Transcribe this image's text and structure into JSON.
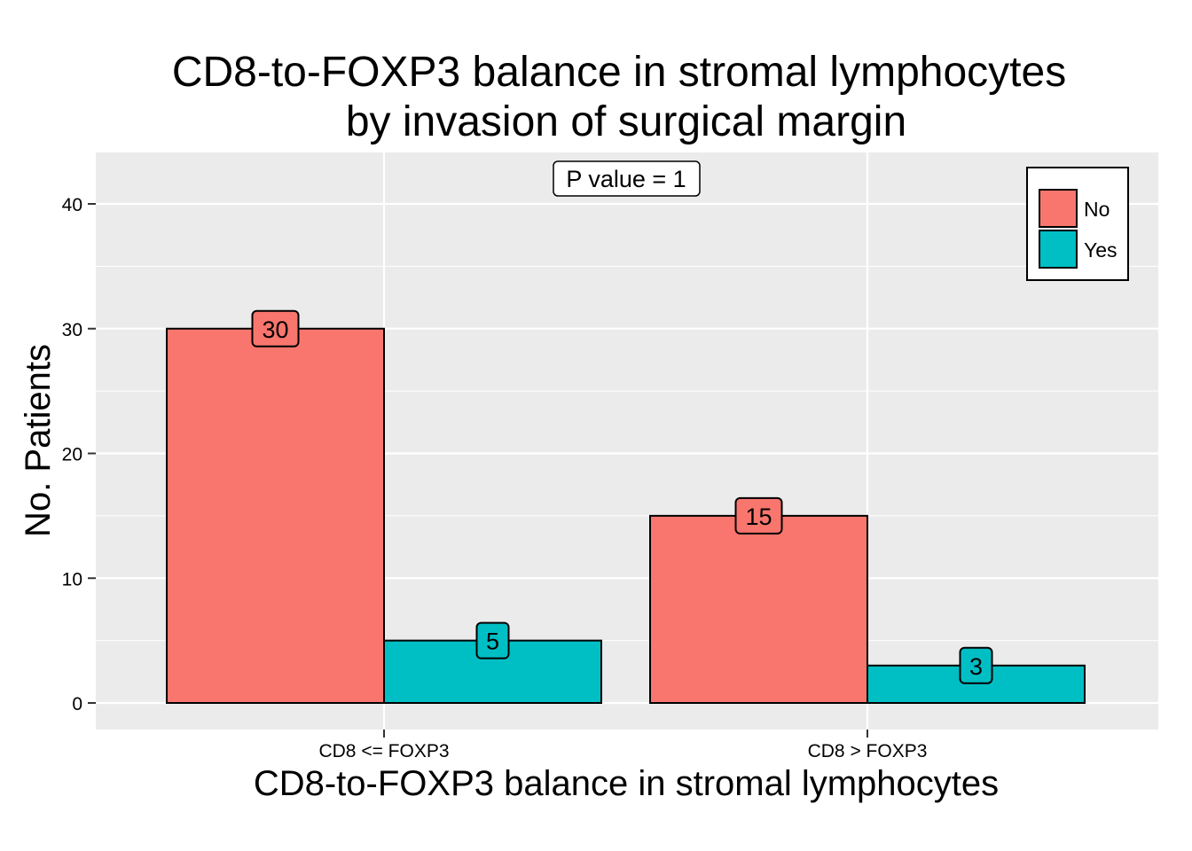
{
  "chart_data": {
    "type": "bar",
    "title_lines": [
      "CD8-to-FOXP3 balance in stromal lymphocytes",
      "by invasion of surgical margin"
    ],
    "xlabel": "CD8-to-FOXP3 balance in stromal lymphocytes",
    "ylabel": "No. Patients",
    "categories": [
      "CD8 <= FOXP3",
      "CD8 > FOXP3"
    ],
    "series": [
      {
        "name": "No",
        "color": "#F8766D",
        "values": [
          30,
          15
        ]
      },
      {
        "name": "Yes",
        "color": "#00BFC4",
        "values": [
          5,
          3
        ]
      }
    ],
    "ylim": [
      -2,
      44
    ],
    "yticks": [
      0,
      10,
      20,
      30,
      40
    ],
    "ytick_labels": [
      "0",
      "10",
      "20",
      "30",
      "40"
    ],
    "annotation": "P value = 1",
    "legend_position": "top-right",
    "grid": true,
    "panel_background": "#EBEBEB"
  }
}
